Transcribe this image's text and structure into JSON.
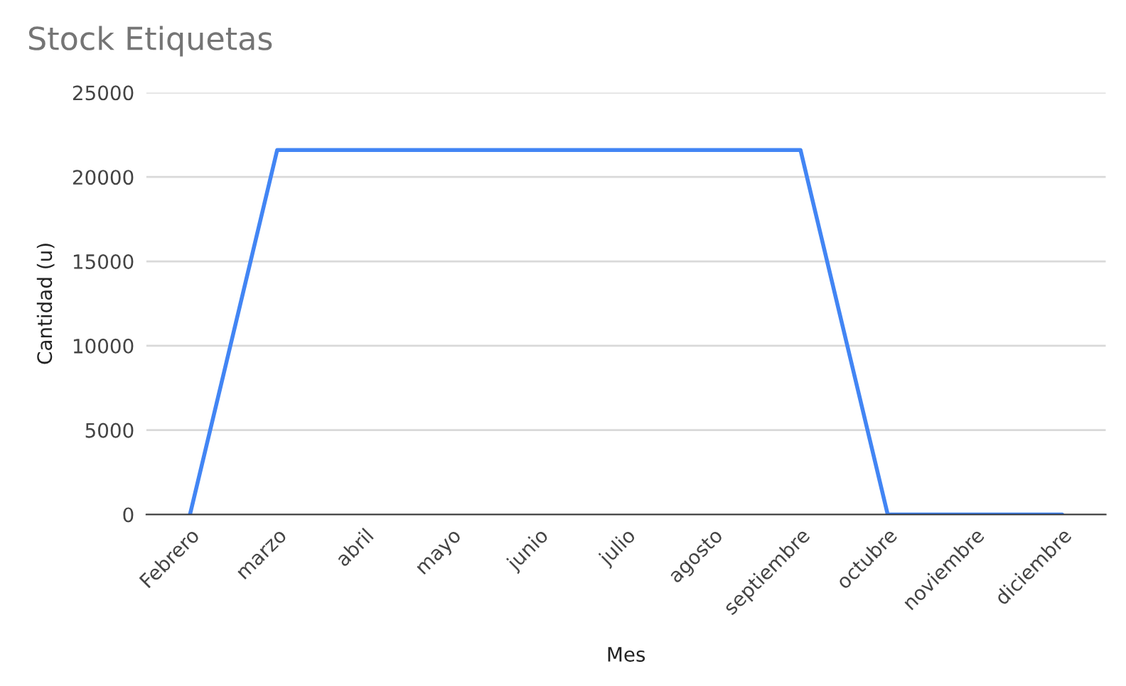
{
  "chart_data": {
    "type": "line",
    "title": "Stock Etiquetas",
    "xlabel": "Mes",
    "ylabel": "Cantidad (u)",
    "categories": [
      "Febrero",
      "marzo",
      "abril",
      "mayo",
      "junio",
      "julio",
      "agosto",
      "septiembre",
      "octubre",
      "noviembre",
      "diciembre"
    ],
    "series": [
      {
        "color": "#4285f4",
        "values": [
          0,
          21600,
          21600,
          21600,
          21600,
          21600,
          21600,
          21600,
          0,
          0,
          0
        ]
      }
    ],
    "ylim": [
      0,
      25000
    ],
    "yticks": [
      0,
      5000,
      10000,
      15000,
      20000,
      25000
    ],
    "grid": "y",
    "marker": "none",
    "line_style": "solid"
  }
}
